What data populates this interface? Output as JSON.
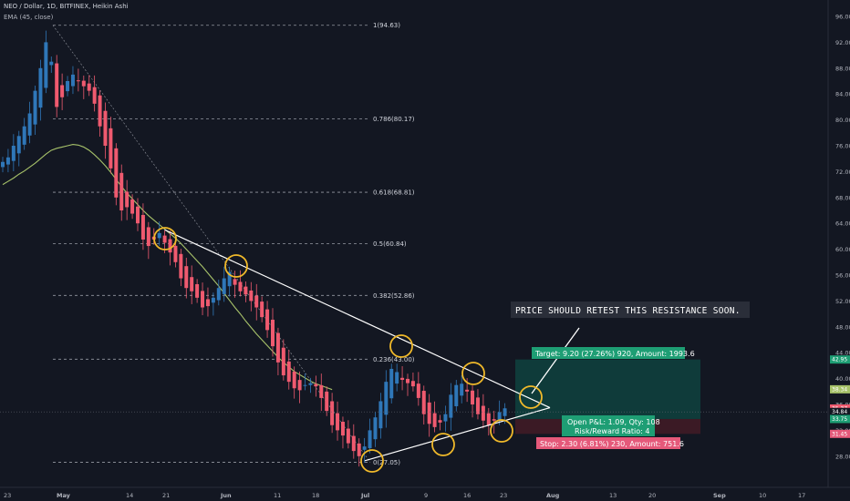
{
  "header": {
    "title": "NEO / Dollar, 1D, BITFINEX, Heikin Ashi",
    "indicator": "EMA (45, close)"
  },
  "colors": {
    "background": "#131722",
    "up": "#2f77b8",
    "down": "#ef5a6f",
    "ema": "#a7c26a",
    "trendline": "#ffffff",
    "circle": "#f0b92a",
    "target_fill": "#0f3b3a",
    "stop_fill": "#3b1a25",
    "target_label": "#1e9e74",
    "stop_label": "#e5597a"
  },
  "chart_data": {
    "type": "candlestick",
    "title": "NEO / Dollar, 1D, BITFINEX, Heikin Ashi",
    "y_axis": {
      "range": [
        25,
        98
      ],
      "ticks": [
        96.0,
        92.0,
        88.0,
        84.0,
        80.0,
        76.0,
        72.0,
        68.0,
        64.0,
        60.0,
        56.0,
        52.0,
        48.0,
        44.0,
        40.0,
        36.0,
        32.0,
        28.0
      ]
    },
    "x_axis": {
      "ticks": [
        "23",
        "May",
        "14",
        "21",
        "Jun",
        "11",
        "18",
        "Jul",
        "9",
        "16",
        "23",
        "Aug",
        "13",
        "20",
        "Sep",
        "10",
        "17"
      ],
      "bold_ticks": [
        "May",
        "Jun",
        "Jul",
        "Aug",
        "Sep"
      ]
    },
    "fibonacci": [
      {
        "label": "1(94.63)",
        "value": 94.63
      },
      {
        "label": "0.786(80.17)",
        "value": 80.17
      },
      {
        "label": "0.618(68.81)",
        "value": 68.81
      },
      {
        "label": "0.5(60.84)",
        "value": 60.84
      },
      {
        "label": "0.382(52.86)",
        "value": 52.86
      },
      {
        "label": "0.236(43.00)",
        "value": 43.0
      },
      {
        "label": "0(27.05)",
        "value": 27.05
      }
    ],
    "price_badges": [
      {
        "text": "42.95",
        "value": 42.95,
        "color": "#1e9e74"
      },
      {
        "text": "38.34",
        "value": 38.34,
        "color": "#a7c26a"
      },
      {
        "text": "35.37",
        "value": 35.37,
        "color": "#ef5a6f"
      },
      {
        "text": "34.84",
        "value": 34.84,
        "color": "#131722"
      },
      {
        "text": "33.75",
        "value": 33.75,
        "color": "#1e9e74"
      },
      {
        "text": "31.45",
        "value": 31.45,
        "color": "#e5597a"
      }
    ],
    "position": {
      "entry": 33.75,
      "target": 42.95,
      "stop": 31.45,
      "target_label": "Target: 9.20 (27.26%) 920, Amount: 1993.6",
      "stop_label": "Stop: 2.30 (6.81%) 230, Amount: 751.6",
      "pnl_label": "Open P&L: 1.09, Qty: 108",
      "rr_label": "Risk/Reward Ratio: 4"
    },
    "annotation": "PRICE SHOULD RETEST THIS RESISTANCE SOON.",
    "closes": [
      73.5,
      74.2,
      76.0,
      77.5,
      79.0,
      81.0,
      84.5,
      88.0,
      92.0,
      89.0,
      82.0,
      83.5,
      86.0,
      87.0,
      86.0,
      85.2,
      84.5,
      82.5,
      79.0,
      76.0,
      72.5,
      68.0,
      66.0,
      66.5,
      65.5,
      64.0,
      61.5,
      60.5,
      61.5,
      62.5,
      61.0,
      59.5,
      58.0,
      55.5,
      54.0,
      53.5,
      52.5,
      51.0,
      51.2,
      52.5,
      54.0,
      55.5,
      56.5,
      54.5,
      53.5,
      53.0,
      52.0,
      51.0,
      49.5,
      47.5,
      45.0,
      42.5,
      40.5,
      39.5,
      38.5,
      38.2,
      39.0,
      39.3,
      38.8,
      37.0,
      35.0,
      32.8,
      32.0,
      31.2,
      30.0,
      28.8,
      28.0,
      29.5,
      32.0,
      34.0,
      36.5,
      39.5,
      41.5,
      41.0,
      39.8,
      39.3,
      38.8,
      37.0,
      34.5,
      33.0,
      32.5,
      33.2,
      34.5,
      37.5,
      39.0,
      39.2,
      38.0,
      36.0,
      34.5,
      33.5,
      32.8,
      33.5,
      34.8,
      35.4
    ],
    "ema": [
      70.0,
      70.5,
      71.0,
      71.6,
      72.1,
      72.7,
      73.3,
      74.0,
      74.7,
      75.3,
      75.6,
      75.8,
      76.0,
      76.2,
      76.1,
      75.8,
      75.3,
      74.6,
      73.8,
      72.9,
      71.9,
      70.8,
      69.7,
      68.7,
      67.8,
      66.9,
      66.0,
      65.2,
      64.5,
      63.8,
      63.1,
      62.4,
      61.7,
      60.9,
      60.0,
      59.1,
      58.2,
      57.3,
      56.3,
      55.3,
      54.3,
      53.2,
      52.1,
      51.0,
      50.0,
      48.9,
      47.9,
      46.9,
      46.0,
      45.1,
      44.2,
      43.3,
      42.5,
      41.8,
      41.1,
      40.6,
      40.1,
      39.6,
      39.2,
      38.9,
      38.6,
      38.3
    ]
  }
}
